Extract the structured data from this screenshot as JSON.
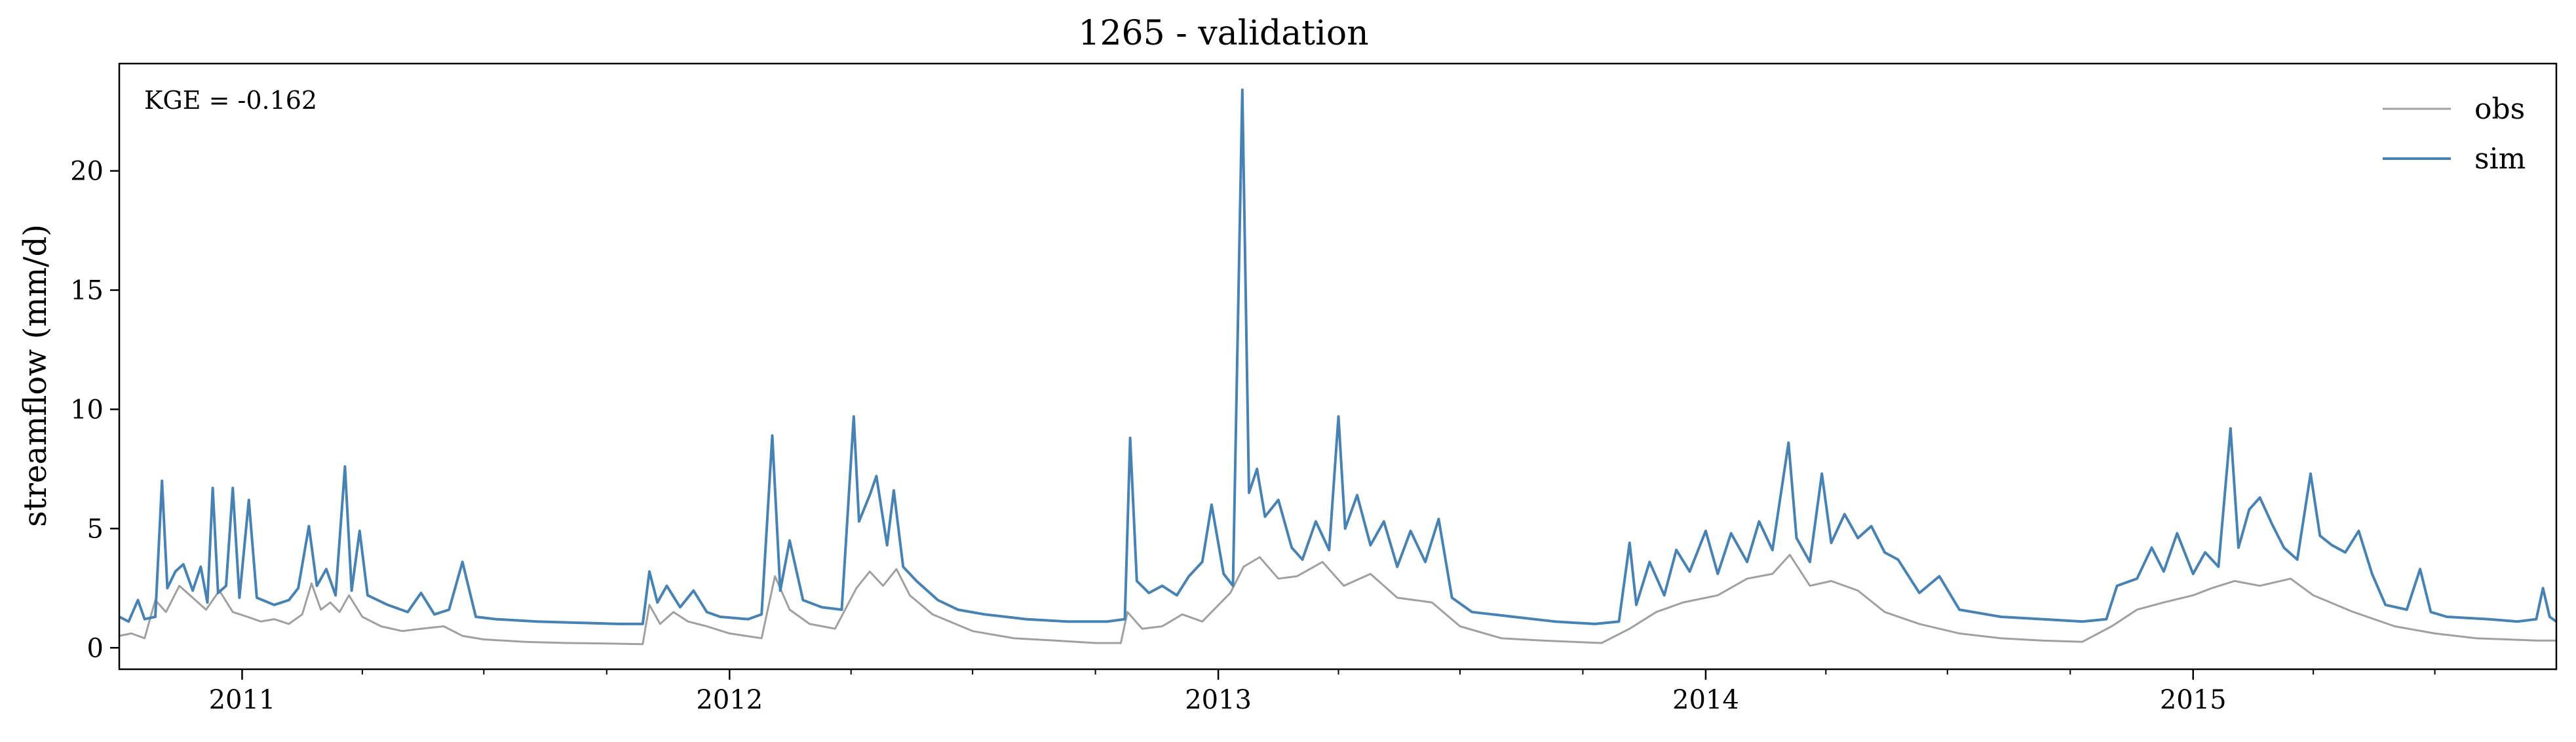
{
  "chart_data": {
    "type": "line",
    "title": "1265 - validation",
    "ylabel": "streamflow (mm/d)",
    "xlabel": "",
    "annotation": "KGE = -0.162",
    "xlim": [
      "2010-10-01",
      "2015-09-30"
    ],
    "ylim": [
      -0.9,
      24.5
    ],
    "y_ticks": [
      0,
      5,
      10,
      15,
      20
    ],
    "x_ticks": [
      "2011-01-01",
      "2012-01-01",
      "2013-01-01",
      "2014-01-01",
      "2015-01-01"
    ],
    "x_tick_labels": [
      "2011",
      "2012",
      "2013",
      "2014",
      "2015"
    ],
    "legend_position": "top-right",
    "grid": false,
    "series": [
      {
        "name": "obs",
        "color": "#a0a0a0",
        "points": [
          [
            "2010-10-01",
            0.5
          ],
          [
            "2010-10-10",
            0.6
          ],
          [
            "2010-10-20",
            0.4
          ],
          [
            "2010-10-28",
            2.0
          ],
          [
            "2010-11-05",
            1.5
          ],
          [
            "2010-11-15",
            2.6
          ],
          [
            "2010-11-25",
            2.1
          ],
          [
            "2010-12-05",
            1.6
          ],
          [
            "2010-12-15",
            2.4
          ],
          [
            "2010-12-25",
            1.5
          ],
          [
            "2011-01-05",
            1.3
          ],
          [
            "2011-01-15",
            1.1
          ],
          [
            "2011-01-25",
            1.2
          ],
          [
            "2011-02-05",
            1.0
          ],
          [
            "2011-02-15",
            1.4
          ],
          [
            "2011-02-22",
            2.7
          ],
          [
            "2011-03-01",
            1.6
          ],
          [
            "2011-03-08",
            1.9
          ],
          [
            "2011-03-15",
            1.5
          ],
          [
            "2011-03-22",
            2.2
          ],
          [
            "2011-04-01",
            1.3
          ],
          [
            "2011-04-15",
            0.9
          ],
          [
            "2011-05-01",
            0.7
          ],
          [
            "2011-05-15",
            0.8
          ],
          [
            "2011-06-01",
            0.9
          ],
          [
            "2011-06-15",
            0.5
          ],
          [
            "2011-07-01",
            0.35
          ],
          [
            "2011-08-01",
            0.25
          ],
          [
            "2011-09-01",
            0.2
          ],
          [
            "2011-10-01",
            0.18
          ],
          [
            "2011-10-28",
            0.15
          ],
          [
            "2011-11-02",
            1.8
          ],
          [
            "2011-11-10",
            1.0
          ],
          [
            "2011-11-20",
            1.5
          ],
          [
            "2011-12-01",
            1.1
          ],
          [
            "2011-12-15",
            0.9
          ],
          [
            "2012-01-01",
            0.6
          ],
          [
            "2012-01-25",
            0.4
          ],
          [
            "2012-02-04",
            3.0
          ],
          [
            "2012-02-15",
            1.6
          ],
          [
            "2012-03-01",
            1.0
          ],
          [
            "2012-03-20",
            0.8
          ],
          [
            "2012-04-05",
            2.5
          ],
          [
            "2012-04-15",
            3.2
          ],
          [
            "2012-04-25",
            2.6
          ],
          [
            "2012-05-05",
            3.3
          ],
          [
            "2012-05-15",
            2.2
          ],
          [
            "2012-06-01",
            1.4
          ],
          [
            "2012-07-01",
            0.7
          ],
          [
            "2012-08-01",
            0.4
          ],
          [
            "2012-09-01",
            0.3
          ],
          [
            "2012-10-01",
            0.2
          ],
          [
            "2012-10-20",
            0.2
          ],
          [
            "2012-10-25",
            1.5
          ],
          [
            "2012-11-05",
            0.8
          ],
          [
            "2012-11-20",
            0.9
          ],
          [
            "2012-12-05",
            1.4
          ],
          [
            "2012-12-20",
            1.1
          ],
          [
            "2013-01-10",
            2.3
          ],
          [
            "2013-01-20",
            3.4
          ],
          [
            "2013-02-01",
            3.8
          ],
          [
            "2013-02-15",
            2.9
          ],
          [
            "2013-03-01",
            3.0
          ],
          [
            "2013-03-20",
            3.6
          ],
          [
            "2013-04-05",
            2.6
          ],
          [
            "2013-04-25",
            3.1
          ],
          [
            "2013-05-15",
            2.1
          ],
          [
            "2013-06-10",
            1.9
          ],
          [
            "2013-07-01",
            0.9
          ],
          [
            "2013-08-01",
            0.4
          ],
          [
            "2013-09-01",
            0.3
          ],
          [
            "2013-10-15",
            0.2
          ],
          [
            "2013-11-05",
            0.8
          ],
          [
            "2013-11-25",
            1.5
          ],
          [
            "2013-12-15",
            1.9
          ],
          [
            "2014-01-10",
            2.2
          ],
          [
            "2014-02-01",
            2.9
          ],
          [
            "2014-02-20",
            3.1
          ],
          [
            "2014-03-05",
            3.9
          ],
          [
            "2014-03-20",
            2.6
          ],
          [
            "2014-04-05",
            2.8
          ],
          [
            "2014-04-25",
            2.4
          ],
          [
            "2014-05-15",
            1.5
          ],
          [
            "2014-06-10",
            1.0
          ],
          [
            "2014-07-10",
            0.6
          ],
          [
            "2014-08-10",
            0.4
          ],
          [
            "2014-09-10",
            0.3
          ],
          [
            "2014-10-10",
            0.25
          ],
          [
            "2014-11-01",
            0.9
          ],
          [
            "2014-11-20",
            1.6
          ],
          [
            "2014-12-10",
            1.9
          ],
          [
            "2015-01-01",
            2.2
          ],
          [
            "2015-01-15",
            2.5
          ],
          [
            "2015-02-01",
            2.8
          ],
          [
            "2015-02-20",
            2.6
          ],
          [
            "2015-03-15",
            2.9
          ],
          [
            "2015-04-01",
            2.2
          ],
          [
            "2015-05-01",
            1.5
          ],
          [
            "2015-06-01",
            0.9
          ],
          [
            "2015-07-01",
            0.6
          ],
          [
            "2015-08-01",
            0.4
          ],
          [
            "2015-09-15",
            0.3
          ],
          [
            "2015-09-30",
            0.3
          ]
        ]
      },
      {
        "name": "sim",
        "color": "#4682b4",
        "points": [
          [
            "2010-10-01",
            1.3
          ],
          [
            "2010-10-08",
            1.1
          ],
          [
            "2010-10-15",
            2.0
          ],
          [
            "2010-10-20",
            1.2
          ],
          [
            "2010-10-28",
            1.3
          ],
          [
            "2010-11-02",
            7.0
          ],
          [
            "2010-11-06",
            2.5
          ],
          [
            "2010-11-12",
            3.2
          ],
          [
            "2010-11-18",
            3.5
          ],
          [
            "2010-11-25",
            2.4
          ],
          [
            "2010-12-01",
            3.4
          ],
          [
            "2010-12-06",
            1.9
          ],
          [
            "2010-12-10",
            6.7
          ],
          [
            "2010-12-14",
            2.3
          ],
          [
            "2010-12-20",
            2.6
          ],
          [
            "2010-12-25",
            6.7
          ],
          [
            "2010-12-30",
            2.1
          ],
          [
            "2011-01-06",
            6.2
          ],
          [
            "2011-01-12",
            2.1
          ],
          [
            "2011-01-25",
            1.8
          ],
          [
            "2011-02-05",
            2.0
          ],
          [
            "2011-02-12",
            2.5
          ],
          [
            "2011-02-20",
            5.1
          ],
          [
            "2011-02-26",
            2.6
          ],
          [
            "2011-03-05",
            3.3
          ],
          [
            "2011-03-12",
            2.2
          ],
          [
            "2011-03-19",
            7.6
          ],
          [
            "2011-03-24",
            2.4
          ],
          [
            "2011-03-30",
            4.9
          ],
          [
            "2011-04-05",
            2.2
          ],
          [
            "2011-04-20",
            1.8
          ],
          [
            "2011-05-05",
            1.5
          ],
          [
            "2011-05-15",
            2.3
          ],
          [
            "2011-05-25",
            1.4
          ],
          [
            "2011-06-05",
            1.6
          ],
          [
            "2011-06-15",
            3.6
          ],
          [
            "2011-06-25",
            1.3
          ],
          [
            "2011-07-10",
            1.2
          ],
          [
            "2011-08-10",
            1.1
          ],
          [
            "2011-09-10",
            1.05
          ],
          [
            "2011-10-10",
            1.0
          ],
          [
            "2011-10-28",
            1.0
          ],
          [
            "2011-11-02",
            3.2
          ],
          [
            "2011-11-08",
            1.9
          ],
          [
            "2011-11-15",
            2.6
          ],
          [
            "2011-11-25",
            1.7
          ],
          [
            "2011-12-05",
            2.4
          ],
          [
            "2011-12-15",
            1.5
          ],
          [
            "2011-12-25",
            1.3
          ],
          [
            "2012-01-15",
            1.2
          ],
          [
            "2012-01-25",
            1.4
          ],
          [
            "2012-02-02",
            8.9
          ],
          [
            "2012-02-08",
            2.4
          ],
          [
            "2012-02-15",
            4.5
          ],
          [
            "2012-02-25",
            2.0
          ],
          [
            "2012-03-10",
            1.7
          ],
          [
            "2012-03-25",
            1.6
          ],
          [
            "2012-04-03",
            9.7
          ],
          [
            "2012-04-07",
            5.3
          ],
          [
            "2012-04-15",
            6.4
          ],
          [
            "2012-04-20",
            7.2
          ],
          [
            "2012-04-28",
            4.3
          ],
          [
            "2012-05-03",
            6.6
          ],
          [
            "2012-05-10",
            3.4
          ],
          [
            "2012-05-20",
            2.8
          ],
          [
            "2012-06-05",
            2.0
          ],
          [
            "2012-06-20",
            1.6
          ],
          [
            "2012-07-10",
            1.4
          ],
          [
            "2012-08-10",
            1.2
          ],
          [
            "2012-09-10",
            1.1
          ],
          [
            "2012-10-10",
            1.1
          ],
          [
            "2012-10-23",
            1.2
          ],
          [
            "2012-10-27",
            8.8
          ],
          [
            "2012-11-01",
            2.8
          ],
          [
            "2012-11-10",
            2.3
          ],
          [
            "2012-11-20",
            2.6
          ],
          [
            "2012-12-01",
            2.2
          ],
          [
            "2012-12-10",
            3.0
          ],
          [
            "2012-12-20",
            3.6
          ],
          [
            "2012-12-27",
            6.0
          ],
          [
            "2013-01-05",
            3.1
          ],
          [
            "2013-01-12",
            2.6
          ],
          [
            "2013-01-19",
            23.4
          ],
          [
            "2013-01-24",
            6.5
          ],
          [
            "2013-01-30",
            7.5
          ],
          [
            "2013-02-05",
            5.5
          ],
          [
            "2013-02-15",
            6.2
          ],
          [
            "2013-02-25",
            4.2
          ],
          [
            "2013-03-05",
            3.7
          ],
          [
            "2013-03-15",
            5.3
          ],
          [
            "2013-03-25",
            4.1
          ],
          [
            "2013-04-01",
            9.7
          ],
          [
            "2013-04-06",
            5.0
          ],
          [
            "2013-04-15",
            6.4
          ],
          [
            "2013-04-25",
            4.3
          ],
          [
            "2013-05-05",
            5.3
          ],
          [
            "2013-05-15",
            3.4
          ],
          [
            "2013-05-25",
            4.9
          ],
          [
            "2013-06-05",
            3.6
          ],
          [
            "2013-06-15",
            5.4
          ],
          [
            "2013-06-25",
            2.1
          ],
          [
            "2013-07-10",
            1.5
          ],
          [
            "2013-08-10",
            1.3
          ],
          [
            "2013-09-10",
            1.1
          ],
          [
            "2013-10-10",
            1.0
          ],
          [
            "2013-10-28",
            1.1
          ],
          [
            "2013-11-05",
            4.4
          ],
          [
            "2013-11-10",
            1.8
          ],
          [
            "2013-11-20",
            3.6
          ],
          [
            "2013-12-01",
            2.2
          ],
          [
            "2013-12-10",
            4.1
          ],
          [
            "2013-12-20",
            3.2
          ],
          [
            "2014-01-01",
            4.9
          ],
          [
            "2014-01-10",
            3.1
          ],
          [
            "2014-01-20",
            4.8
          ],
          [
            "2014-02-01",
            3.6
          ],
          [
            "2014-02-10",
            5.3
          ],
          [
            "2014-02-20",
            4.1
          ],
          [
            "2014-03-04",
            8.6
          ],
          [
            "2014-03-10",
            4.6
          ],
          [
            "2014-03-20",
            3.6
          ],
          [
            "2014-03-29",
            7.3
          ],
          [
            "2014-04-05",
            4.4
          ],
          [
            "2014-04-15",
            5.6
          ],
          [
            "2014-04-25",
            4.6
          ],
          [
            "2014-05-05",
            5.1
          ],
          [
            "2014-05-15",
            4.0
          ],
          [
            "2014-05-25",
            3.7
          ],
          [
            "2014-06-10",
            2.3
          ],
          [
            "2014-06-25",
            3.0
          ],
          [
            "2014-07-10",
            1.6
          ],
          [
            "2014-08-10",
            1.3
          ],
          [
            "2014-09-10",
            1.2
          ],
          [
            "2014-10-10",
            1.1
          ],
          [
            "2014-10-28",
            1.2
          ],
          [
            "2014-11-05",
            2.6
          ],
          [
            "2014-11-20",
            2.9
          ],
          [
            "2014-12-01",
            4.2
          ],
          [
            "2014-12-10",
            3.2
          ],
          [
            "2014-12-20",
            4.8
          ],
          [
            "2015-01-01",
            3.1
          ],
          [
            "2015-01-10",
            4.0
          ],
          [
            "2015-01-20",
            3.4
          ],
          [
            "2015-01-29",
            9.2
          ],
          [
            "2015-02-04",
            4.2
          ],
          [
            "2015-02-12",
            5.8
          ],
          [
            "2015-02-20",
            6.3
          ],
          [
            "2015-03-01",
            5.2
          ],
          [
            "2015-03-10",
            4.2
          ],
          [
            "2015-03-20",
            3.7
          ],
          [
            "2015-03-30",
            7.3
          ],
          [
            "2015-04-06",
            4.7
          ],
          [
            "2015-04-15",
            4.3
          ],
          [
            "2015-04-25",
            4.0
          ],
          [
            "2015-05-05",
            4.9
          ],
          [
            "2015-05-15",
            3.1
          ],
          [
            "2015-05-25",
            1.8
          ],
          [
            "2015-06-10",
            1.6
          ],
          [
            "2015-06-20",
            3.3
          ],
          [
            "2015-06-28",
            1.5
          ],
          [
            "2015-07-10",
            1.3
          ],
          [
            "2015-08-10",
            1.2
          ],
          [
            "2015-09-01",
            1.1
          ],
          [
            "2015-09-15",
            1.2
          ],
          [
            "2015-09-20",
            2.5
          ],
          [
            "2015-09-25",
            1.3
          ],
          [
            "2015-09-30",
            1.1
          ]
        ]
      }
    ]
  }
}
